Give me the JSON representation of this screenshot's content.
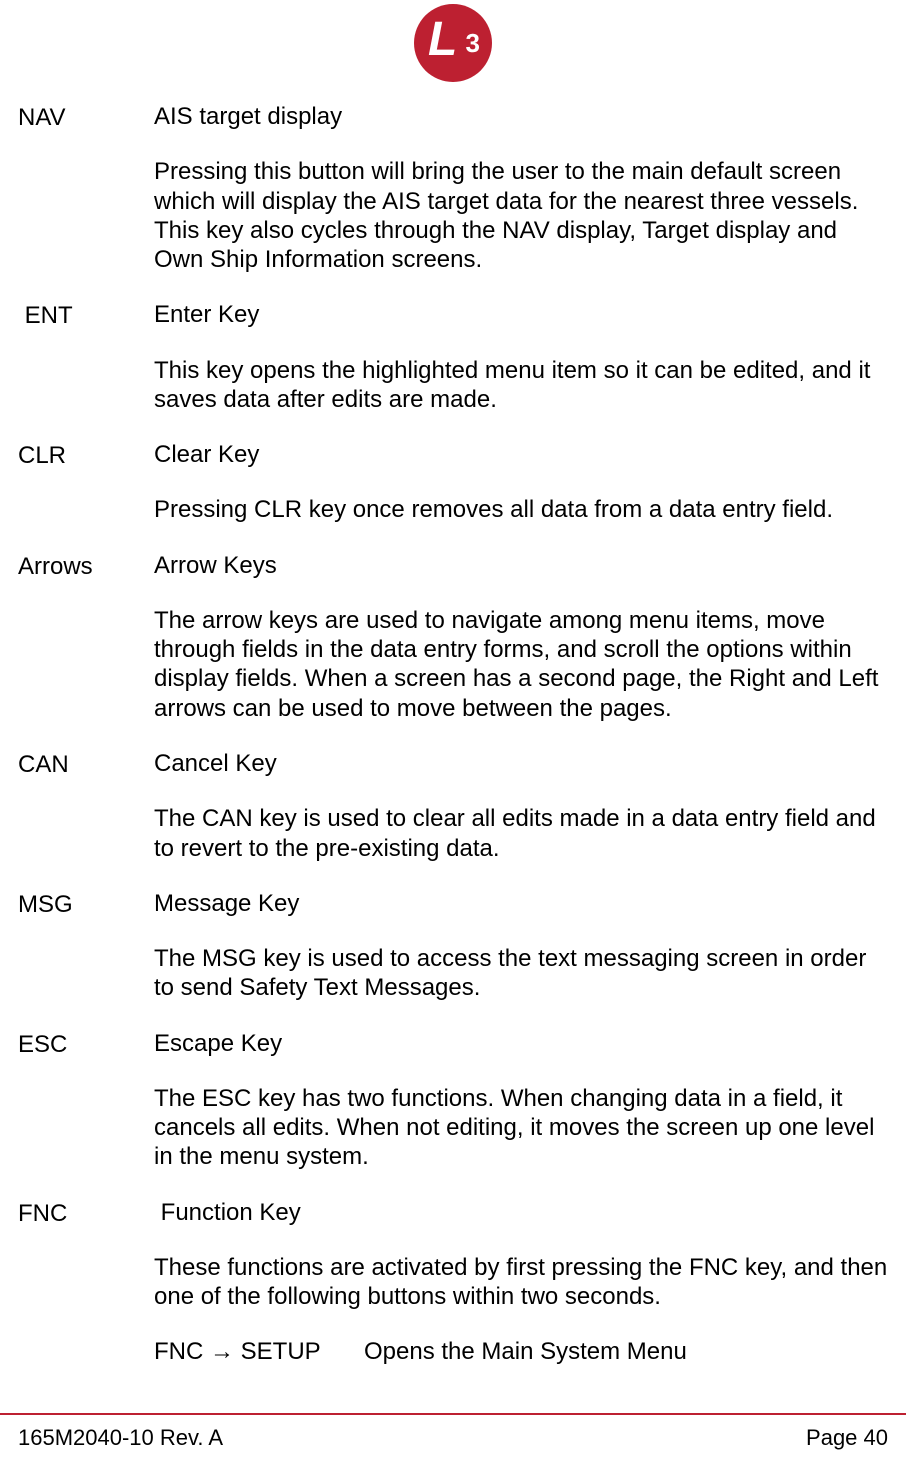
{
  "logo": {
    "letter": "L",
    "number": "3",
    "background_color": "#bd2031",
    "text_color": "#ffffff"
  },
  "entries": [
    {
      "key": "NAV",
      "title": "AIS target display",
      "body": "Pressing this button will bring the user to the main default screen which will display the AIS target data for the nearest three vessels. This key also cycles through the NAV display, Target display and Own Ship Information screens."
    },
    {
      "key": " ENT",
      "title": "Enter Key",
      "body": "This key opens the highlighted menu item so it can be edited, and it saves data after edits are made."
    },
    {
      "key": "CLR",
      "title": "Clear Key",
      "body": "Pressing CLR key once removes all data from a data entry field."
    },
    {
      "key": "Arrows",
      "title": "Arrow Keys",
      "body": "The arrow keys are used to navigate among menu items, move through fields in the data entry forms, and scroll the options within display fields. When a screen has a second page, the Right and Left arrows can be used to move between the pages."
    },
    {
      "key": "CAN",
      "title": "Cancel Key",
      "body": "The CAN key is used to clear all edits made in a data entry field and to revert to the pre-existing data."
    },
    {
      "key": "MSG",
      "title": "Message Key",
      "body": "The MSG key is used to access the text messaging screen in order to send Safety Text Messages."
    },
    {
      "key": "ESC",
      "title": "Escape Key",
      "body": "The ESC key has two functions. When changing data in a field, it cancels all edits. When not editing, it moves the screen up one level in the menu system."
    },
    {
      "key": "FNC",
      "title": " Function Key",
      "body": "These functions are activated by first pressing the FNC key, and then one of the following buttons within two seconds.",
      "sub": {
        "left": "FNC → SETUP",
        "right": "Opens the Main System Menu"
      }
    }
  ],
  "footer": {
    "left": "165M2040-10 Rev. A",
    "right": "Page 40",
    "rule_color": "#bd2031"
  },
  "typography": {
    "body_fontsize": 24,
    "footer_fontsize": 22,
    "text_color": "#000000",
    "background_color": "#ffffff",
    "font_family": "Arial"
  }
}
